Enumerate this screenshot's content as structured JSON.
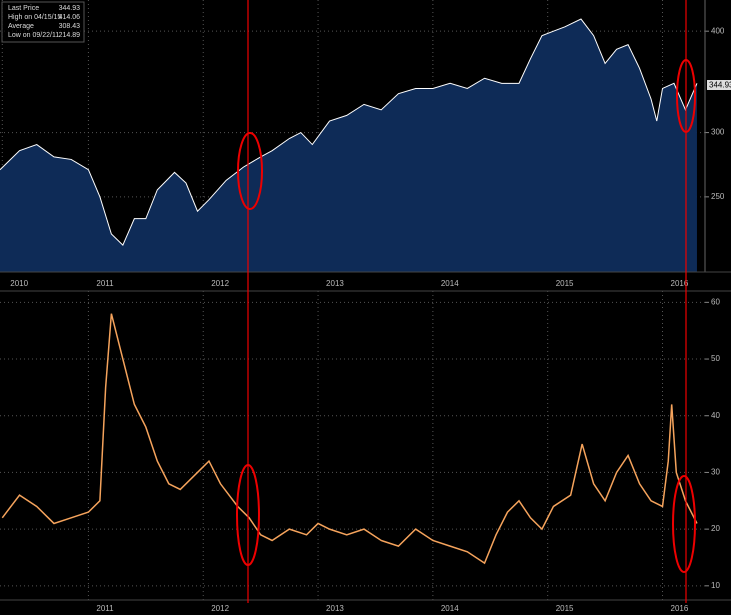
{
  "chart_data": [
    {
      "type": "area",
      "log": true,
      "grid": true,
      "color": "#ffffff",
      "fill": "#0e2b57",
      "legend": [
        {
          "label": "Last Price",
          "value": 344.93
        },
        {
          "label": "High on 04/15/15",
          "value": 414.06
        },
        {
          "label": "Average",
          "value": 308.43
        },
        {
          "label": "Low on 09/22/11",
          "value": 214.89
        }
      ],
      "x": [
        2010.23,
        2010.4,
        2010.55,
        2010.7,
        2010.85,
        2011.0,
        2011.1,
        2011.2,
        2011.3,
        2011.4,
        2011.5,
        2011.6,
        2011.75,
        2011.85,
        2011.95,
        2012.05,
        2012.2,
        2012.35,
        2012.5,
        2012.6,
        2012.75,
        2012.85,
        2012.95,
        2013.1,
        2013.25,
        2013.4,
        2013.55,
        2013.7,
        2013.85,
        2014.0,
        2014.15,
        2014.3,
        2014.45,
        2014.6,
        2014.75,
        2014.85,
        2014.95,
        2015.05,
        2015.15,
        2015.29,
        2015.4,
        2015.5,
        2015.6,
        2015.7,
        2015.8,
        2015.9,
        2015.95,
        2016.0,
        2016.1,
        2016.2,
        2016.3
      ],
      "values": [
        270,
        285,
        290,
        280,
        278,
        270,
        250,
        225,
        218,
        235,
        235,
        255,
        268,
        260,
        240,
        248,
        262,
        272,
        280,
        285,
        295,
        300,
        290,
        310,
        315,
        325,
        320,
        335,
        340,
        340,
        345,
        340,
        350,
        345,
        345,
        370,
        395,
        400,
        405,
        414,
        395,
        365,
        380,
        385,
        360,
        330,
        310,
        340,
        345,
        320,
        345
      ],
      "xlim": [
        2010.23,
        2016.37
      ],
      "xticks": [
        {
          "value": 2010.25,
          "label": "2010"
        },
        2011,
        2012,
        2013,
        2014,
        2015,
        2016
      ],
      "ylim": [
        202,
        437
      ],
      "yticks": [
        250,
        300,
        400
      ]
    },
    {
      "type": "line",
      "grid": true,
      "color": "#f5a35c",
      "x": [
        2010.25,
        2010.4,
        2010.55,
        2010.7,
        2010.85,
        2011.0,
        2011.1,
        2011.15,
        2011.2,
        2011.3,
        2011.4,
        2011.5,
        2011.6,
        2011.7,
        2011.8,
        2011.95,
        2012.05,
        2012.15,
        2012.3,
        2012.4,
        2012.5,
        2012.6,
        2012.75,
        2012.9,
        2013.0,
        2013.1,
        2013.25,
        2013.4,
        2013.55,
        2013.7,
        2013.85,
        2014.0,
        2014.15,
        2014.3,
        2014.45,
        2014.55,
        2014.65,
        2014.75,
        2014.85,
        2014.95,
        2015.05,
        2015.2,
        2015.3,
        2015.4,
        2015.5,
        2015.6,
        2015.7,
        2015.8,
        2015.9,
        2016.0,
        2016.05,
        2016.08,
        2016.12,
        2016.2,
        2016.3
      ],
      "values": [
        22,
        26,
        24,
        21,
        22,
        23,
        25,
        45,
        58,
        50,
        42,
        38,
        32,
        28,
        27,
        30,
        32,
        28,
        24,
        22,
        19,
        18,
        20,
        19,
        21,
        20,
        19,
        20,
        18,
        17,
        20,
        18,
        17,
        16,
        14,
        19,
        23,
        25,
        22,
        20,
        24,
        26,
        35,
        28,
        25,
        30,
        33,
        28,
        25,
        24,
        32,
        42,
        30,
        25,
        21
      ],
      "xlim": [
        2010.23,
        2016.37
      ],
      "xticks": [
        2011,
        2012,
        2013,
        2014,
        2015,
        2016
      ],
      "ylim": [
        7.5,
        62
      ],
      "yticks": [
        10,
        20,
        30,
        40,
        50,
        60
      ]
    }
  ]
}
